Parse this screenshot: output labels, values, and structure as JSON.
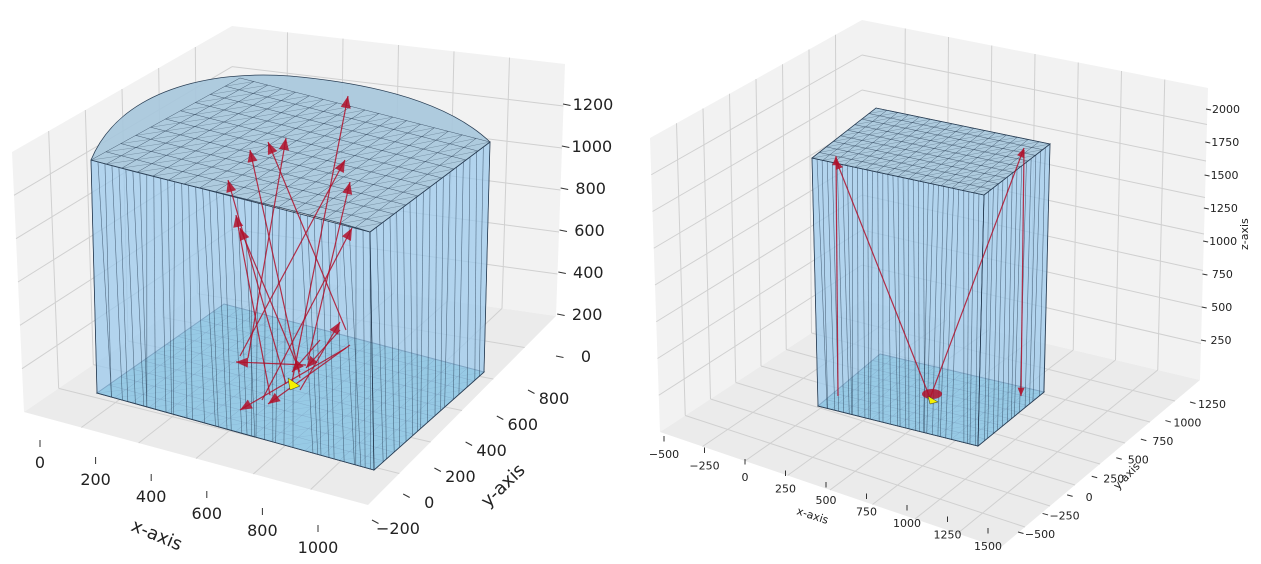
{
  "colors": {
    "pane": "#f2f2f2",
    "pane_side": "#ebebeb",
    "grid": "#d0d0d0",
    "wall_fill": "#9cc9ec",
    "wall_edge": "#2a3f55",
    "floor_fill": "#87cbd0",
    "roof_fill": "#a6c6dc",
    "arrow": "#b0102a",
    "marker": "#f5f000"
  },
  "chart_data": [
    {
      "type": "3d-surface-with-vectors",
      "title": "",
      "xlabel": "x-axis",
      "ylabel": "y-axis",
      "zlabel": "",
      "x_ticks": [
        "0",
        "200",
        "400",
        "600",
        "800",
        "1000"
      ],
      "y_ticks": [
        "−200",
        "0",
        "200",
        "400",
        "600",
        "800"
      ],
      "z_ticks": [
        "0",
        "200",
        "400",
        "600",
        "800",
        "1000",
        "1200"
      ],
      "room": {
        "x": [
          0,
          1000
        ],
        "y": [
          0,
          800
        ],
        "z": [
          0,
          1050
        ],
        "roof": "curved"
      },
      "source_point": [
        480,
        300,
        0
      ],
      "vector_count": 16
    },
    {
      "type": "3d-surface-with-vectors",
      "title": "",
      "xlabel": "x-axis",
      "ylabel": "y-axis",
      "zlabel": "z-axis",
      "x_ticks": [
        "−500",
        "−250",
        "0",
        "250",
        "500",
        "750",
        "1000",
        "1250",
        "1500"
      ],
      "y_ticks": [
        "−500",
        "−250",
        "0",
        "250",
        "500",
        "750",
        "1000",
        "1250"
      ],
      "z_ticks": [
        "250",
        "500",
        "750",
        "1000",
        "1250",
        "1500",
        "1750",
        "2000"
      ],
      "room": {
        "x": [
          0,
          1000
        ],
        "y": [
          0,
          1000
        ],
        "z": [
          0,
          1900
        ],
        "roof": "flat"
      },
      "source_point": [
        500,
        500,
        0
      ],
      "vector_count": 3
    }
  ]
}
